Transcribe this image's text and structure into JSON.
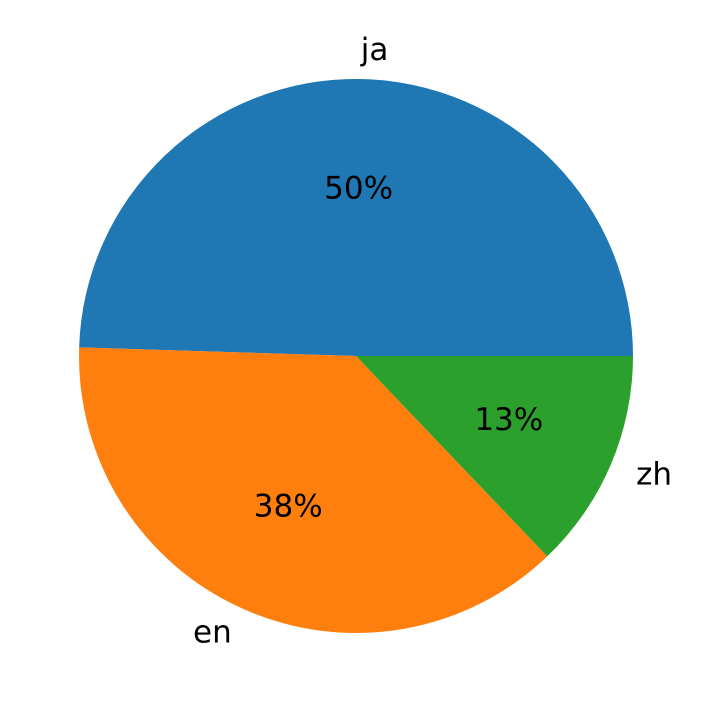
{
  "chart_data": {
    "type": "pie",
    "categories": [
      "ja",
      "en",
      "zh"
    ],
    "values": [
      50,
      38,
      13
    ],
    "value_labels": [
      "50%",
      "38%",
      "13%"
    ],
    "colors": [
      "#1f77b4",
      "#ff7f0e",
      "#2ca02c"
    ]
  }
}
